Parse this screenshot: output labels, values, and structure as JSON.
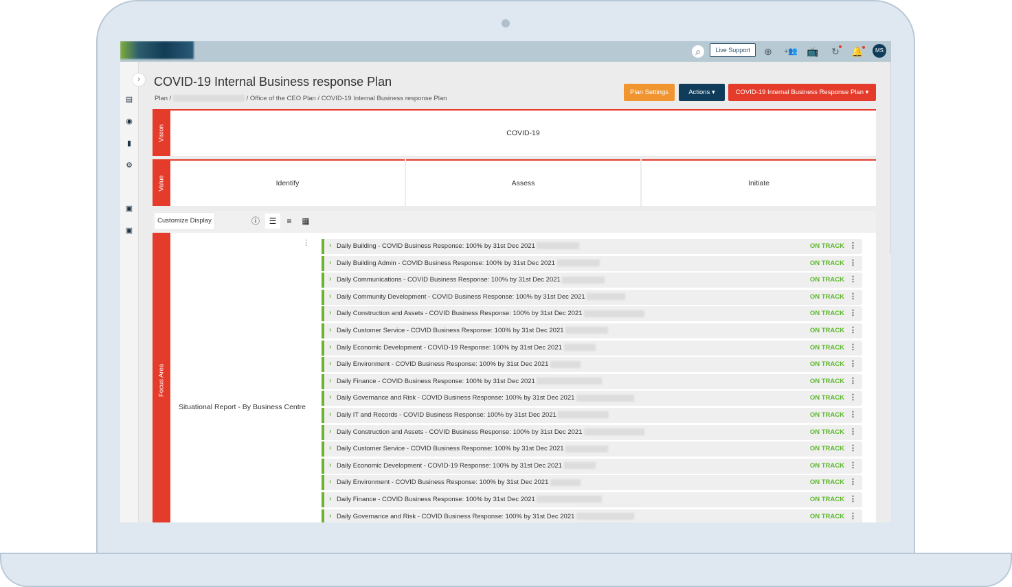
{
  "header": {
    "live_support": "Live Support",
    "avatar_initials": "MS"
  },
  "page": {
    "title": "COVID-19 Internal Business response Plan",
    "breadcrumb": [
      "Plan /",
      "/ Office of the CEO Plan /",
      "COVID-19 Internal Business response Plan"
    ]
  },
  "buttons": {
    "plan_settings": "Plan Settings",
    "actions": "Actions ▾",
    "plan_select": "COVID-19 Internal Business Response Plan ▾"
  },
  "vision": {
    "label": "Vision",
    "text": "COVID-19"
  },
  "value": {
    "label": "Value",
    "columns": [
      "Identify",
      "Assess",
      "Initiate"
    ]
  },
  "toolbar": {
    "customize": "Customize Display"
  },
  "focus_area": {
    "label": "Focus Area",
    "name": "Situational Report - By Business Centre"
  },
  "items": [
    {
      "label": "Daily Building - COVID Business Response: 100% by 31st Dec 2021",
      "status": "ON TRACK"
    },
    {
      "label": "Daily Building Admin - COVID Business Response: 100% by 31st Dec 2021",
      "status": "ON TRACK"
    },
    {
      "label": "Daily Communications - COVID Business Response: 100% by 31st Dec 2021",
      "status": "ON TRACK"
    },
    {
      "label": "Daily Community Development - COVID Business Response: 100% by 31st Dec 2021",
      "status": "ON TRACK"
    },
    {
      "label": "Daily Construction and Assets - COVID Business Response: 100% by 31st Dec 2021",
      "status": "ON TRACK"
    },
    {
      "label": "Daily Customer Service - COVID Business Response: 100% by 31st Dec 2021",
      "status": "ON TRACK"
    },
    {
      "label": "Daily Economic Development - COVID-19 Response: 100% by 31st Dec 2021",
      "status": "ON TRACK"
    },
    {
      "label": "Daily Environment - COVID Business Response: 100% by 31st Dec 2021",
      "status": "ON TRACK"
    },
    {
      "label": "Daily Finance - COVID Business Response: 100% by 31st Dec 2021",
      "status": "ON TRACK"
    },
    {
      "label": "Daily Governance and Risk - COVID Business Response: 100% by 31st Dec 2021",
      "status": "ON TRACK"
    },
    {
      "label": "Daily IT and Records - COVID Business Response: 100% by 31st Dec 2021",
      "status": "ON TRACK"
    },
    {
      "label": "Daily Construction and Assets - COVID Business Response: 100% by 31st Dec 2021",
      "status": "ON TRACK"
    },
    {
      "label": "Daily Customer Service - COVID Business Response: 100% by 31st Dec 2021",
      "status": "ON TRACK"
    },
    {
      "label": "Daily Economic Development - COVID-19 Response: 100% by 31st Dec 2021",
      "status": "ON TRACK"
    },
    {
      "label": "Daily Environment - COVID Business Response: 100% by 31st Dec 2021",
      "status": "ON TRACK"
    },
    {
      "label": "Daily Finance - COVID Business Response: 100% by 31st Dec 2021",
      "status": "ON TRACK"
    },
    {
      "label": "Daily Governance and Risk - COVID Business Response: 100% by 31st Dec 2021",
      "status": "ON TRACK"
    }
  ],
  "colors": {
    "accent_red": "#e53b2b",
    "on_track": "#5cb82a",
    "navy": "#0e3c5a",
    "orange": "#f0952f"
  }
}
